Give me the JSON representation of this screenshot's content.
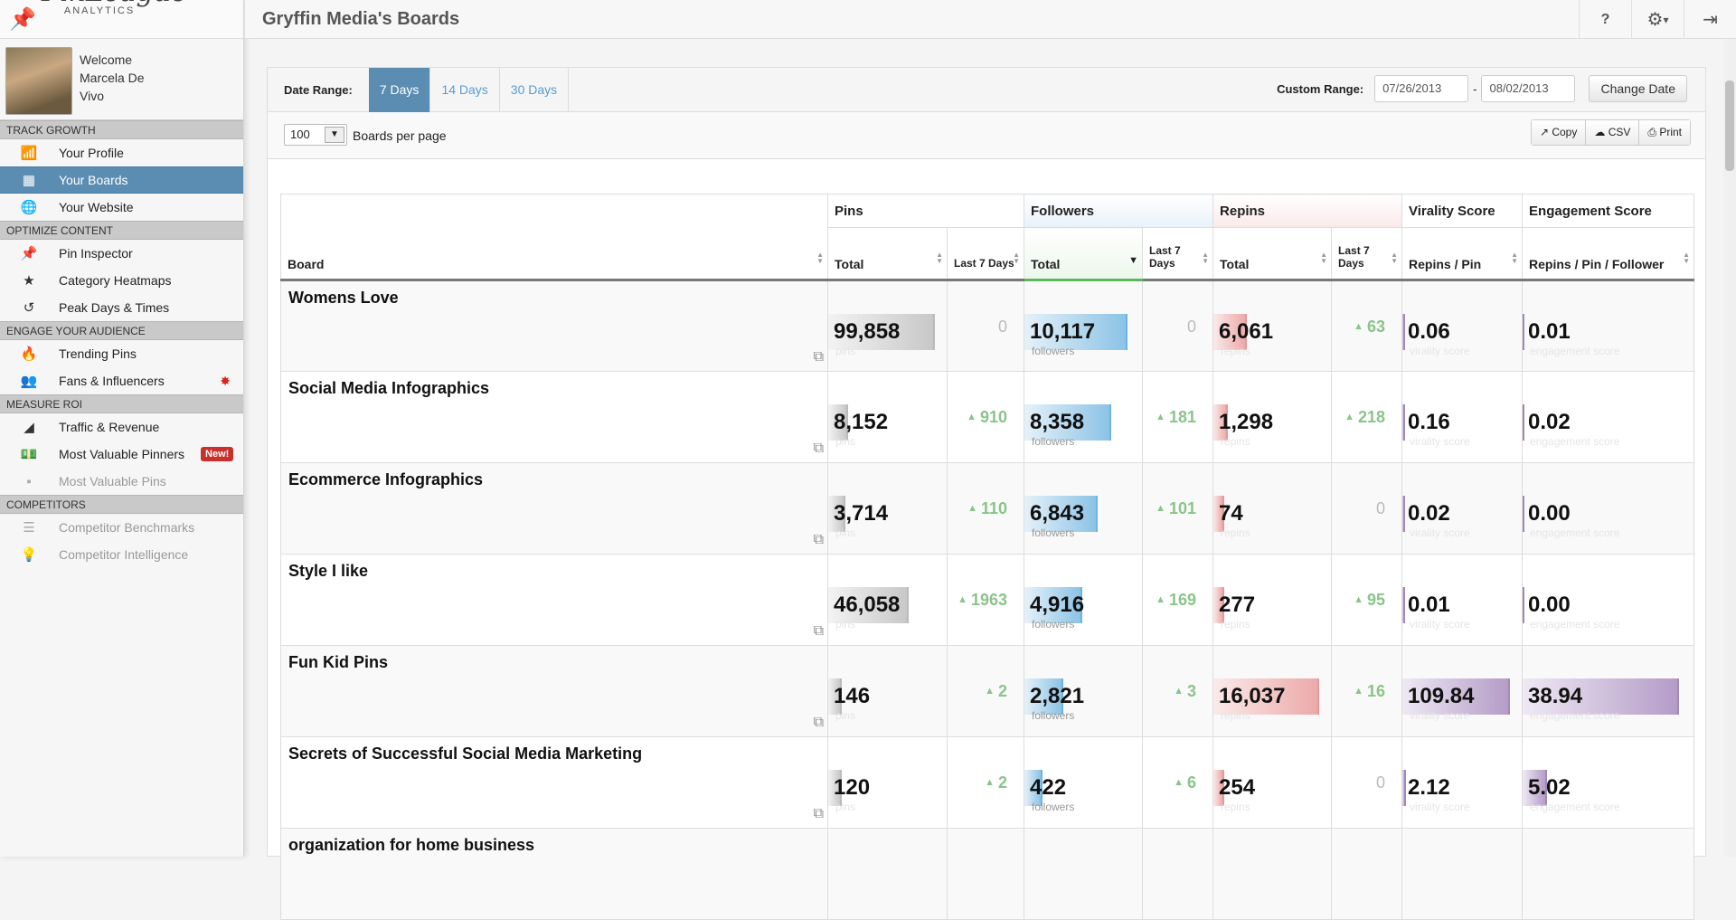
{
  "logo": {
    "brand": "PinLeague",
    "sub": "ANALYTICS"
  },
  "user": {
    "welcome": "Welcome",
    "name_line1": "Marcela De",
    "name_line2": "Vivo"
  },
  "sidebar": {
    "sections": [
      {
        "label": "TRACK GROWTH",
        "items": [
          {
            "label": "Your Profile",
            "icon": "bar-chart-icon",
            "glyph": "📶"
          },
          {
            "label": "Your Boards",
            "icon": "grid-icon",
            "glyph": "▦",
            "active": true
          },
          {
            "label": "Your Website",
            "icon": "globe-icon",
            "glyph": "🌐"
          }
        ]
      },
      {
        "label": "OPTIMIZE CONTENT",
        "items": [
          {
            "label": "Pin Inspector",
            "icon": "pushpin-icon",
            "glyph": "📌"
          },
          {
            "label": "Category Heatmaps",
            "icon": "star-icon",
            "glyph": "★"
          },
          {
            "label": "Peak Days & Times",
            "icon": "history-icon",
            "glyph": "↺"
          }
        ]
      },
      {
        "label": "ENGAGE YOUR AUDIENCE",
        "items": [
          {
            "label": "Trending Pins",
            "icon": "fire-icon",
            "glyph": "🔥"
          },
          {
            "label": "Fans & Influencers",
            "icon": "users-icon",
            "glyph": "👥",
            "dot": "✸"
          }
        ]
      },
      {
        "label": "MEASURE ROI",
        "items": [
          {
            "label": "Traffic & Revenue",
            "icon": "area-chart-icon",
            "glyph": "◢"
          },
          {
            "label": "Most Valuable Pinners",
            "icon": "money-icon",
            "glyph": "💵",
            "badge": "New!"
          },
          {
            "label": "Most Valuable Pins",
            "icon": "pin-icon",
            "glyph": "▪",
            "disabled": true
          }
        ]
      },
      {
        "label": "COMPETITORS",
        "items": [
          {
            "label": "Competitor Benchmarks",
            "icon": "benchmark-icon",
            "glyph": "☰",
            "disabled": true
          },
          {
            "label": "Competitor Intelligence",
            "icon": "lightbulb-icon",
            "glyph": "💡",
            "disabled": true
          }
        ]
      }
    ]
  },
  "header": {
    "title": "Gryffin Media's Boards"
  },
  "filter": {
    "date_range_label": "Date Range:",
    "ranges": [
      {
        "label": "7 Days",
        "active": true
      },
      {
        "label": "14 Days"
      },
      {
        "label": "30 Days"
      }
    ],
    "custom_range_label": "Custom Range:",
    "start_date": "07/26/2013",
    "dash": "-",
    "end_date": "08/02/2013",
    "change_date_label": "Change Date"
  },
  "options": {
    "per_page_value": "100",
    "per_page_label": "Boards per page",
    "copy_label": "Copy",
    "csv_label": "CSV",
    "print_label": "Print"
  },
  "table": {
    "groups": {
      "pins": "Pins",
      "followers": "Followers",
      "repins": "Repins",
      "virality": "Virality Score",
      "engagement": "Engagement Score"
    },
    "columns": {
      "board": "Board",
      "pins_total": "Total",
      "pins_last7": "Last 7 Days",
      "followers_total": "Total",
      "followers_last7": "Last 7 Days",
      "repins_total": "Total",
      "repins_last7": "Last 7 Days",
      "virality": "Repins / Pin",
      "engagement": "Repins / Pin / Follower"
    },
    "captions": {
      "pins": "pins",
      "followers": "followers",
      "repins": "repins",
      "virality": "virality score",
      "engagement": "engagement score"
    },
    "rows": [
      {
        "board": "Womens Love",
        "pins": "99,858",
        "pins_bar": 0.95,
        "pins_d": "0",
        "followers": "10,117",
        "followers_bar": 0.93,
        "followers_d": "0",
        "repins": "6,061",
        "repins_bar": 0.3,
        "repins_d": "63",
        "virality": "0.06",
        "virality_bar": 0.02,
        "engagement": "0.01",
        "engagement_bar": 0.01
      },
      {
        "board": "Social Media Infographics",
        "pins": "8,152",
        "pins_bar": 0.18,
        "pins_d": "910",
        "followers": "8,358",
        "followers_bar": 0.78,
        "followers_d": "181",
        "repins": "1,298",
        "repins_bar": 0.13,
        "repins_d": "218",
        "virality": "0.16",
        "virality_bar": 0.02,
        "engagement": "0.02",
        "engagement_bar": 0.01
      },
      {
        "board": "Ecommerce Infographics",
        "pins": "3,714",
        "pins_bar": 0.15,
        "pins_d": "110",
        "followers": "6,843",
        "followers_bar": 0.66,
        "followers_d": "101",
        "repins": "74",
        "repins_bar": 0.1,
        "repins_d": "0",
        "virality": "0.02",
        "virality_bar": 0.02,
        "engagement": "0.00",
        "engagement_bar": 0.01
      },
      {
        "board": "Style I like",
        "pins": "46,058",
        "pins_bar": 0.72,
        "pins_d": "1963",
        "followers": "4,916",
        "followers_bar": 0.52,
        "followers_d": "169",
        "repins": "277",
        "repins_bar": 0.1,
        "repins_d": "95",
        "virality": "0.01",
        "virality_bar": 0.02,
        "engagement": "0.00",
        "engagement_bar": 0.01
      },
      {
        "board": "Fun Kid Pins",
        "pins": "146",
        "pins_bar": 0.12,
        "pins_d": "2",
        "followers": "2,821",
        "followers_bar": 0.35,
        "followers_d": "3",
        "repins": "16,037",
        "repins_bar": 0.95,
        "repins_d": "16",
        "virality": "109.84",
        "virality_bar": 0.95,
        "engagement": "38.94",
        "engagement_bar": 0.95
      },
      {
        "board": "Secrets of Successful Social Media Marketing",
        "pins": "120",
        "pins_bar": 0.12,
        "pins_d": "2",
        "followers": "422",
        "followers_bar": 0.16,
        "followers_d": "6",
        "repins": "254",
        "repins_bar": 0.1,
        "repins_d": "0",
        "virality": "2.12",
        "virality_bar": 0.03,
        "engagement": "5.02",
        "engagement_bar": 0.15
      },
      {
        "board": "organization for home business",
        "pins": "",
        "pins_bar": 0,
        "pins_d": "",
        "followers": "",
        "followers_bar": 0,
        "followers_d": "",
        "repins": "",
        "repins_bar": 0,
        "repins_d": "",
        "virality": "",
        "virality_bar": 0,
        "engagement": "",
        "engagement_bar": 0
      }
    ]
  },
  "top_icons": {
    "help": "?",
    "settings": "⚙",
    "caret": "▾",
    "logout": "⇥"
  }
}
